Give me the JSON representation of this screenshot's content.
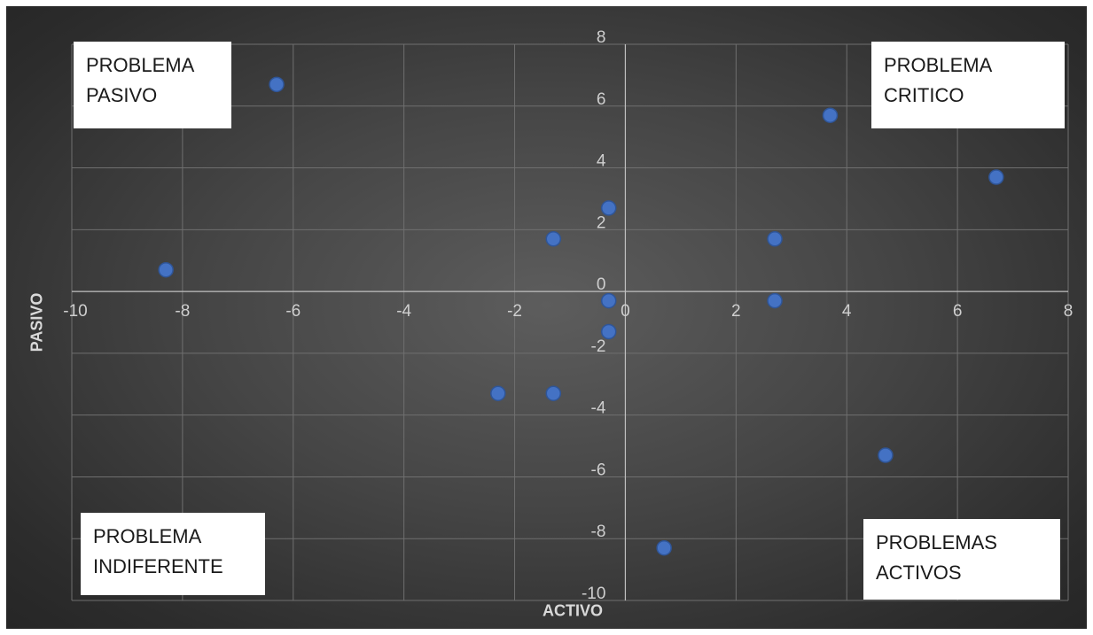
{
  "chart_data": {
    "type": "scatter",
    "title": "",
    "xlabel": "ACTIVO",
    "ylabel": "PASIVO",
    "xlim": [
      -10,
      8
    ],
    "ylim": [
      -10,
      8
    ],
    "xticks": [
      -10,
      -8,
      -6,
      -4,
      -2,
      0,
      2,
      4,
      6,
      8
    ],
    "yticks": [
      -10,
      -8,
      -6,
      -4,
      -2,
      0,
      2,
      4,
      6,
      8
    ],
    "grid": true,
    "marker_color": "#4472c4",
    "series": [
      {
        "x": [
          -8.3,
          -6.3,
          -2.3,
          -1.3,
          -1.3,
          -0.3,
          -0.3,
          -0.3,
          0.7,
          2.7,
          2.7,
          3.7,
          4.7,
          6.7
        ],
        "y": [
          0.7,
          6.7,
          -3.3,
          1.7,
          -3.3,
          2.7,
          -0.3,
          -1.3,
          -8.3,
          1.7,
          -0.3,
          5.7,
          -5.3,
          3.7
        ]
      }
    ],
    "annotations": {
      "top_left": [
        "PROBLEMA",
        "PASIVO"
      ],
      "top_right": [
        "PROBLEMA",
        "CRITICO"
      ],
      "bottom_left": [
        "PROBLEMA",
        "INDIFERENTE"
      ],
      "bottom_right": [
        "PROBLEMAS",
        "ACTIVOS"
      ]
    }
  }
}
